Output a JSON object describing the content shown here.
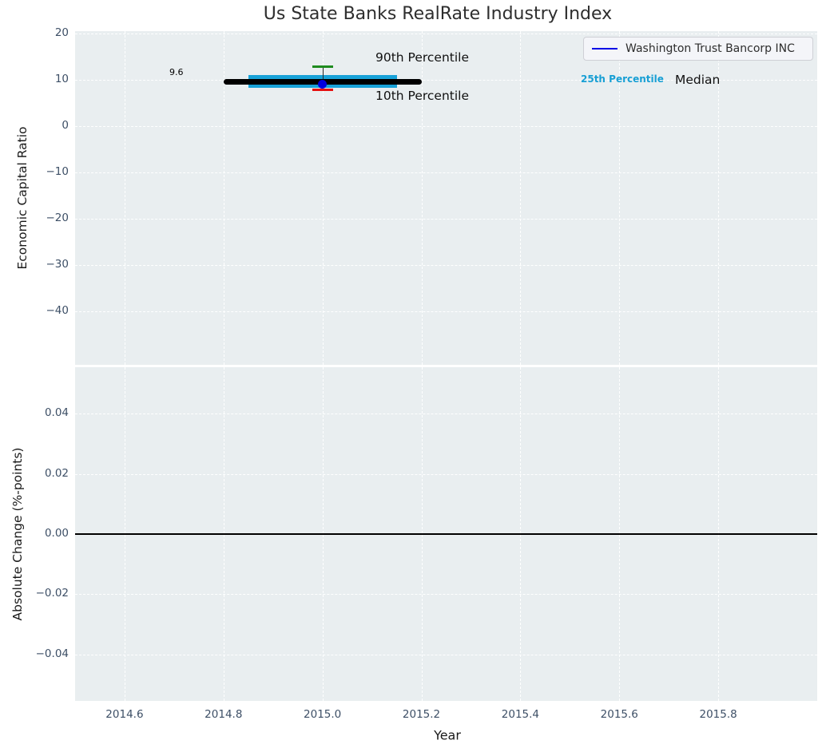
{
  "title": "Us State Banks RealRate Industry Index",
  "legend": {
    "series_label": "Washington Trust Bancorp INC"
  },
  "annotations": {
    "p90_label": "90th Percentile",
    "p10_label": "10th Percentile",
    "p25_label": "25th Percentile",
    "median_label": "Median",
    "median_value_label": "9.6"
  },
  "colors": {
    "plot_bg": "#e9eef0",
    "grid": "#ffffff",
    "tick_label": "#3d4f66",
    "median_line": "#000000",
    "iqr_box": "#18a2d8",
    "p90_cap": "#1e8b1e",
    "p10_cap": "#e60f0f",
    "company_dot": "#0000dd",
    "legend_line": "#0000e6",
    "zero_line": "#000000",
    "p25_label_color": "#179fd4"
  },
  "chart_data": [
    {
      "type": "box",
      "title": "Us State Banks RealRate Industry Index",
      "ylabel": "Economic Capital Ratio",
      "xlabel": "",
      "xlim": [
        2014.5,
        2016.0
      ],
      "ylim": [
        -51.5,
        20.5
      ],
      "xticks": [
        2014.6,
        2014.8,
        2015.0,
        2015.2,
        2015.4,
        2015.6,
        2015.8
      ],
      "xtick_labels": [
        "",
        "",
        "",
        "",
        "",
        "",
        ""
      ],
      "yticks": [
        20,
        10,
        0,
        -10,
        -20,
        -30,
        -40
      ],
      "ytick_labels": [
        "20",
        "10",
        "0",
        "−10",
        "−20",
        "−30",
        "−40"
      ],
      "grid": true,
      "legend_position": "upper right",
      "series": [
        {
          "name": "Washington Trust Bancorp INC",
          "x": [
            2015.0
          ],
          "y": [
            9.0
          ]
        }
      ],
      "industry_stats": {
        "year": 2015.0,
        "median": 9.6,
        "p25": 8.3,
        "p75": 11.1,
        "p10": 7.8,
        "p90": 12.9,
        "median_bar_span": [
          2014.8,
          2015.2
        ],
        "iqr_bar_span": [
          2014.85,
          2015.15
        ]
      }
    },
    {
      "type": "line",
      "title": "",
      "ylabel": "Absolute Change (%-points)",
      "xlabel": "Year",
      "xlim": [
        2014.5,
        2016.0
      ],
      "ylim": [
        -0.0555,
        0.0555
      ],
      "xticks": [
        2014.6,
        2014.8,
        2015.0,
        2015.2,
        2015.4,
        2015.6,
        2015.8
      ],
      "xtick_labels": [
        "2014.6",
        "2014.8",
        "2015.0",
        "2015.2",
        "2015.4",
        "2015.6",
        "2015.8"
      ],
      "yticks": [
        0.04,
        0.02,
        0.0,
        -0.02,
        -0.04
      ],
      "ytick_labels": [
        "0.04",
        "0.02",
        "0.00",
        "−0.02",
        "−0.04"
      ],
      "grid": true,
      "zero_line": 0.0,
      "series": []
    }
  ]
}
